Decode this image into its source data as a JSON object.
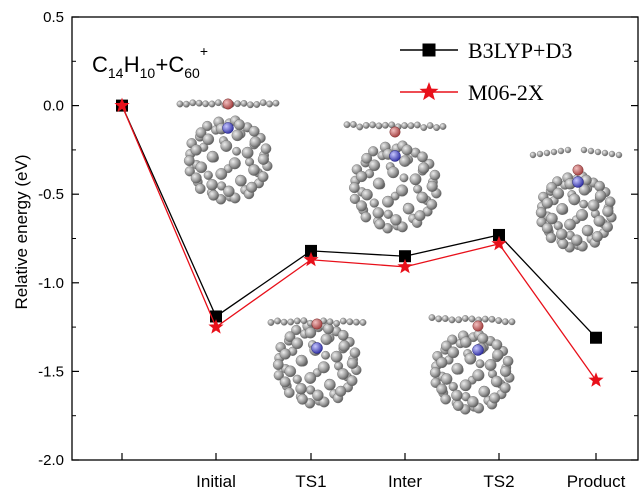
{
  "chart_data": {
    "type": "line",
    "title": "",
    "formula": {
      "parts": [
        {
          "text": "C",
          "sub": "14"
        },
        {
          "text": "H",
          "sub": "10"
        },
        {
          "text": "+C",
          "sub": "60",
          "sup": "+"
        }
      ]
    },
    "ylabel": "Relative energy (eV)",
    "xlabel": "",
    "ylim": [
      -2.0,
      0.5
    ],
    "yticks": [
      "0.5",
      "0.0",
      "-0.5",
      "-1.0",
      "-1.5",
      "-2.0"
    ],
    "ytick_values": [
      0.5,
      0.0,
      -0.5,
      -1.0,
      -1.5,
      -2.0
    ],
    "categories": [
      "",
      "Initial",
      "TS1",
      "Inter",
      "TS2",
      "Product"
    ],
    "legend_position": "top-right",
    "series": [
      {
        "name": "B3LYP+D3",
        "color": "#000000",
        "marker": "square",
        "values": [
          0.0,
          -1.19,
          -0.82,
          -0.85,
          -0.73,
          -1.31
        ]
      },
      {
        "name": "M06-2X",
        "color": "#e8101a",
        "marker": "star",
        "values": [
          0.0,
          -1.25,
          -0.87,
          -0.91,
          -0.78,
          -1.55
        ]
      }
    ],
    "molecule_insets": [
      "Initial",
      "TS1",
      "Inter",
      "TS2",
      "Product"
    ]
  }
}
